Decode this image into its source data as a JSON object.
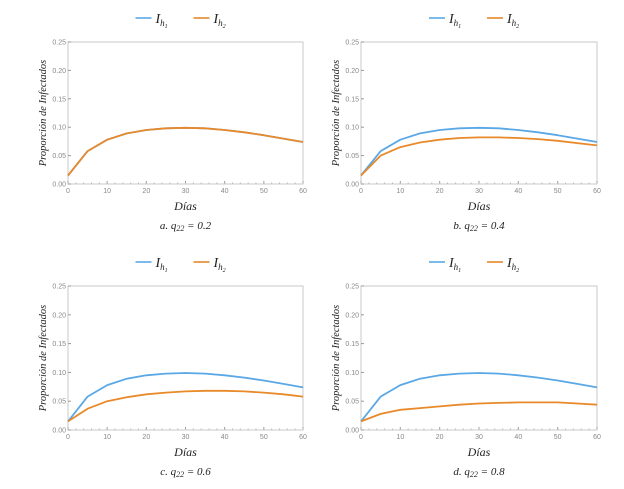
{
  "chart_data": [
    {
      "type": "line",
      "panel": "a",
      "caption_prefix": "a.",
      "caption_var": "q",
      "caption_sub": "22",
      "caption_value": "= 0.2",
      "xlabel": "Días",
      "ylabel": "Proporción de Infectados",
      "xlim": [
        0,
        60
      ],
      "ylim": [
        0,
        0.25
      ],
      "xticks": [
        "0",
        "10",
        "20",
        "30",
        "40",
        "50",
        "60"
      ],
      "yticks": [
        "0.00",
        "0.05",
        "0.10",
        "0.15",
        "0.20",
        "0.25"
      ],
      "x": [
        0,
        5,
        10,
        15,
        20,
        25,
        30,
        35,
        40,
        45,
        50,
        55,
        60
      ],
      "series": [
        {
          "name": "I_h1",
          "legend_base": "I",
          "legend_sub": "h",
          "legend_subsub": "1",
          "color": "#5aa8e6",
          "values": [
            0.015,
            0.058,
            0.078,
            0.089,
            0.095,
            0.098,
            0.099,
            0.098,
            0.095,
            0.091,
            0.086,
            0.08,
            0.074
          ]
        },
        {
          "name": "I_h2",
          "legend_base": "I",
          "legend_sub": "h",
          "legend_subsub": "2",
          "color": "#e8892a",
          "values": [
            0.015,
            0.058,
            0.078,
            0.089,
            0.095,
            0.098,
            0.099,
            0.098,
            0.095,
            0.091,
            0.086,
            0.08,
            0.074
          ]
        }
      ]
    },
    {
      "type": "line",
      "panel": "b",
      "caption_prefix": "b.",
      "caption_var": "q",
      "caption_sub": "22",
      "caption_value": "= 0.4",
      "xlabel": "Días",
      "ylabel": "Proporción de Infectados",
      "xlim": [
        0,
        60
      ],
      "ylim": [
        0,
        0.25
      ],
      "xticks": [
        "0",
        "10",
        "20",
        "30",
        "40",
        "50",
        "60"
      ],
      "yticks": [
        "0.00",
        "0.05",
        "0.10",
        "0.15",
        "0.20",
        "0.25"
      ],
      "x": [
        0,
        5,
        10,
        15,
        20,
        25,
        30,
        35,
        40,
        45,
        50,
        55,
        60
      ],
      "series": [
        {
          "name": "I_h1",
          "legend_base": "I",
          "legend_sub": "h",
          "legend_subsub": "1",
          "color": "#5aa8e6",
          "values": [
            0.015,
            0.058,
            0.078,
            0.089,
            0.095,
            0.098,
            0.099,
            0.098,
            0.095,
            0.091,
            0.086,
            0.08,
            0.074
          ]
        },
        {
          "name": "I_h2",
          "legend_base": "I",
          "legend_sub": "h",
          "legend_subsub": "2",
          "color": "#e8892a",
          "values": [
            0.015,
            0.05,
            0.065,
            0.073,
            0.078,
            0.081,
            0.082,
            0.082,
            0.081,
            0.079,
            0.076,
            0.072,
            0.068
          ]
        }
      ]
    },
    {
      "type": "line",
      "panel": "c",
      "caption_prefix": "c.",
      "caption_var": "q",
      "caption_sub": "22",
      "caption_value": "= 0.6",
      "xlabel": "Días",
      "ylabel": "Proporción de Infectados",
      "xlim": [
        0,
        60
      ],
      "ylim": [
        0,
        0.25
      ],
      "xticks": [
        "0",
        "10",
        "20",
        "30",
        "40",
        "50",
        "60"
      ],
      "yticks": [
        "0.00",
        "0.05",
        "0.10",
        "0.15",
        "0.20",
        "0.25"
      ],
      "x": [
        0,
        5,
        10,
        15,
        20,
        25,
        30,
        35,
        40,
        45,
        50,
        55,
        60
      ],
      "series": [
        {
          "name": "I_h1",
          "legend_base": "I",
          "legend_sub": "h",
          "legend_subsub": "1",
          "color": "#5aa8e6",
          "values": [
            0.015,
            0.058,
            0.078,
            0.089,
            0.095,
            0.098,
            0.099,
            0.098,
            0.095,
            0.091,
            0.086,
            0.08,
            0.074
          ]
        },
        {
          "name": "I_h2",
          "legend_base": "I",
          "legend_sub": "h",
          "legend_subsub": "2",
          "color": "#e8892a",
          "values": [
            0.015,
            0.037,
            0.05,
            0.057,
            0.062,
            0.065,
            0.067,
            0.068,
            0.068,
            0.067,
            0.065,
            0.062,
            0.058
          ]
        }
      ]
    },
    {
      "type": "line",
      "panel": "d",
      "caption_prefix": "d.",
      "caption_var": "q",
      "caption_sub": "22",
      "caption_value": "= 0.8",
      "xlabel": "Días",
      "ylabel": "Proporción de Infectados",
      "xlim": [
        0,
        60
      ],
      "ylim": [
        0,
        0.25
      ],
      "xticks": [
        "0",
        "10",
        "20",
        "30",
        "40",
        "50",
        "60"
      ],
      "yticks": [
        "0.00",
        "0.05",
        "0.10",
        "0.15",
        "0.20",
        "0.25"
      ],
      "x": [
        0,
        5,
        10,
        15,
        20,
        25,
        30,
        35,
        40,
        45,
        50,
        55,
        60
      ],
      "series": [
        {
          "name": "I_h1",
          "legend_base": "I",
          "legend_sub": "h",
          "legend_subsub": "1",
          "color": "#5aa8e6",
          "values": [
            0.015,
            0.058,
            0.078,
            0.089,
            0.095,
            0.098,
            0.099,
            0.098,
            0.095,
            0.091,
            0.086,
            0.08,
            0.074
          ]
        },
        {
          "name": "I_h2",
          "legend_base": "I",
          "legend_sub": "h",
          "legend_subsub": "2",
          "color": "#e8892a",
          "values": [
            0.015,
            0.028,
            0.035,
            0.038,
            0.041,
            0.044,
            0.046,
            0.047,
            0.048,
            0.048,
            0.048,
            0.046,
            0.044
          ]
        }
      ]
    }
  ]
}
